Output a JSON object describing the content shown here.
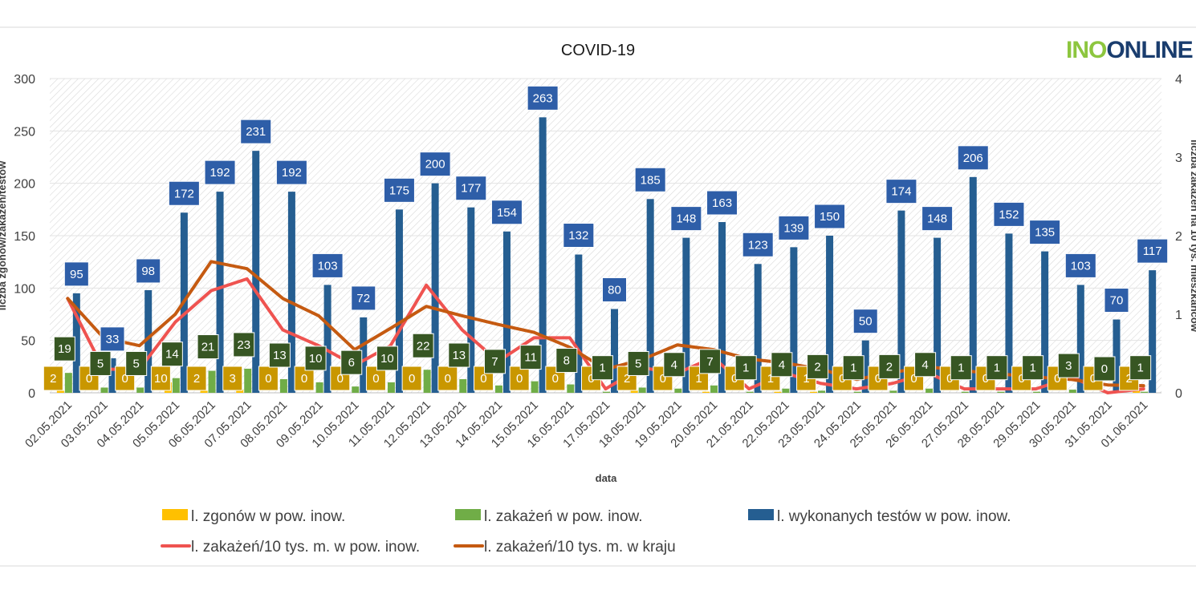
{
  "chart_data": {
    "type": "bar",
    "title": "COVID-19",
    "brand": "INOONLINE",
    "xlabel": "data",
    "ylabel": "liczba zgonów/zakażeń/testów",
    "y2label": "liczba zakażeń na 10 tys. mieszkańców",
    "ylim": [
      0,
      300
    ],
    "yticks": [
      0,
      50,
      100,
      150,
      200,
      250,
      300
    ],
    "y2lim": [
      0,
      4
    ],
    "y2ticks": [
      0,
      1,
      2,
      3,
      4
    ],
    "categories": [
      "02.05.2021",
      "03.05.2021",
      "04.05.2021",
      "05.05.2021",
      "06.05.2021",
      "07.05.2021",
      "08.05.2021",
      "09.05.2021",
      "10.05.2021",
      "11.05.2021",
      "12.05.2021",
      "13.05.2021",
      "14.05.2021",
      "15.05.2021",
      "16.05.2021",
      "17.05.2021",
      "18.05.2021",
      "19.05.2021",
      "20.05.2021",
      "21.05.2021",
      "22.05.2021",
      "23.05.2021",
      "24.05.2021",
      "25.05.2021",
      "26.05.2021",
      "27.05.2021",
      "28.05.2021",
      "29.05.2021",
      "30.05.2021",
      "31.05.2021",
      "01.06.2021"
    ],
    "series": [
      {
        "name": "l. zgonów w pow. inow.",
        "axis": "left",
        "kind": "bar",
        "color": "#ffc000",
        "values": [
          2,
          0,
          0,
          10,
          2,
          3,
          0,
          0,
          0,
          0,
          0,
          0,
          0,
          0,
          0,
          0,
          2,
          0,
          1,
          0,
          1,
          1,
          0,
          0,
          0,
          0,
          0,
          0,
          0,
          0,
          2
        ]
      },
      {
        "name": "l. zakażeń w pow. inow.",
        "axis": "left",
        "kind": "bar",
        "color": "#70ad47",
        "values": [
          19,
          5,
          5,
          14,
          21,
          23,
          13,
          10,
          6,
          10,
          22,
          13,
          7,
          11,
          8,
          1,
          5,
          4,
          7,
          1,
          4,
          2,
          1,
          2,
          4,
          1,
          1,
          1,
          3,
          0,
          1
        ]
      },
      {
        "name": "l. wykonanych testów w pow. inow.",
        "axis": "left",
        "kind": "bar",
        "color": "#255e91",
        "values": [
          95,
          33,
          98,
          172,
          192,
          231,
          192,
          103,
          72,
          175,
          200,
          177,
          154,
          263,
          132,
          80,
          185,
          148,
          163,
          123,
          139,
          150,
          50,
          174,
          148,
          206,
          152,
          135,
          103,
          70,
          117
        ]
      },
      {
        "name": "l. zakażeń/10 tys. m. w pow. inow.",
        "axis": "right",
        "kind": "line",
        "color": "#ef5350",
        "values": [
          1.2,
          0.3,
          0.3,
          0.9,
          1.3,
          1.45,
          0.8,
          0.6,
          0.35,
          0.6,
          1.37,
          0.8,
          0.4,
          0.7,
          0.7,
          0.05,
          0.32,
          0.25,
          0.45,
          0.05,
          0.25,
          0.12,
          0.05,
          0.12,
          0.25,
          0.05,
          0.05,
          0.05,
          0.2,
          0.0,
          0.05
        ]
      },
      {
        "name": "l. zakażeń/10 tys. m. w kraju",
        "axis": "right",
        "kind": "line",
        "color": "#c55a11",
        "values": [
          1.2,
          0.7,
          0.6,
          1.0,
          1.67,
          1.58,
          1.2,
          0.98,
          0.55,
          0.82,
          1.1,
          0.98,
          0.87,
          0.77,
          0.58,
          0.3,
          0.42,
          0.61,
          0.55,
          0.43,
          0.38,
          0.3,
          0.17,
          0.26,
          0.33,
          0.28,
          0.24,
          0.2,
          0.17,
          0.1,
          0.09
        ]
      }
    ],
    "legend_position": "bottom"
  }
}
